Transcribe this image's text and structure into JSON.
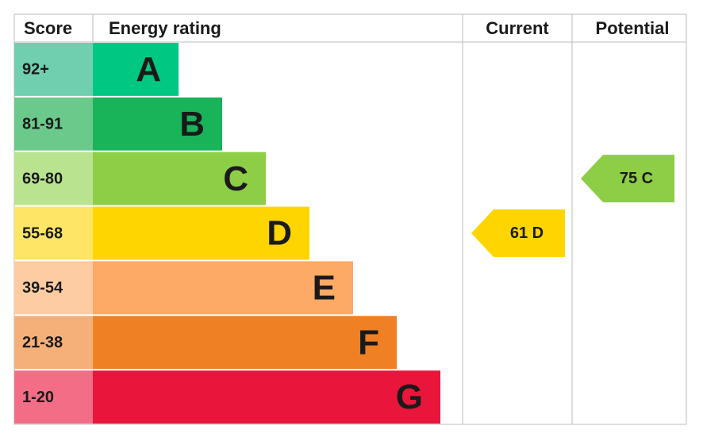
{
  "header": {
    "score": "Score",
    "energy_rating": "Energy rating",
    "current": "Current",
    "potential": "Potential"
  },
  "bands": [
    {
      "score": "92+",
      "letter": "A",
      "color": "#00c781",
      "score_color": "#6fcfae"
    },
    {
      "score": "81-91",
      "letter": "B",
      "color": "#19b459",
      "score_color": "#6cc98c"
    },
    {
      "score": "69-80",
      "letter": "C",
      "color": "#8dce46",
      "score_color": "#bae390"
    },
    {
      "score": "55-68",
      "letter": "D",
      "color": "#ffd500",
      "score_color": "#ffe566"
    },
    {
      "score": "39-54",
      "letter": "E",
      "color": "#fcaa65",
      "score_color": "#fdcca2"
    },
    {
      "score": "21-38",
      "letter": "F",
      "color": "#ef8023",
      "score_color": "#f5b07a"
    },
    {
      "score": "1-20",
      "letter": "G",
      "color": "#e9153b",
      "score_color": "#f26d85"
    }
  ],
  "current": {
    "score": 61,
    "rating": "D"
  },
  "potential": {
    "score": 75,
    "rating": "C"
  }
}
